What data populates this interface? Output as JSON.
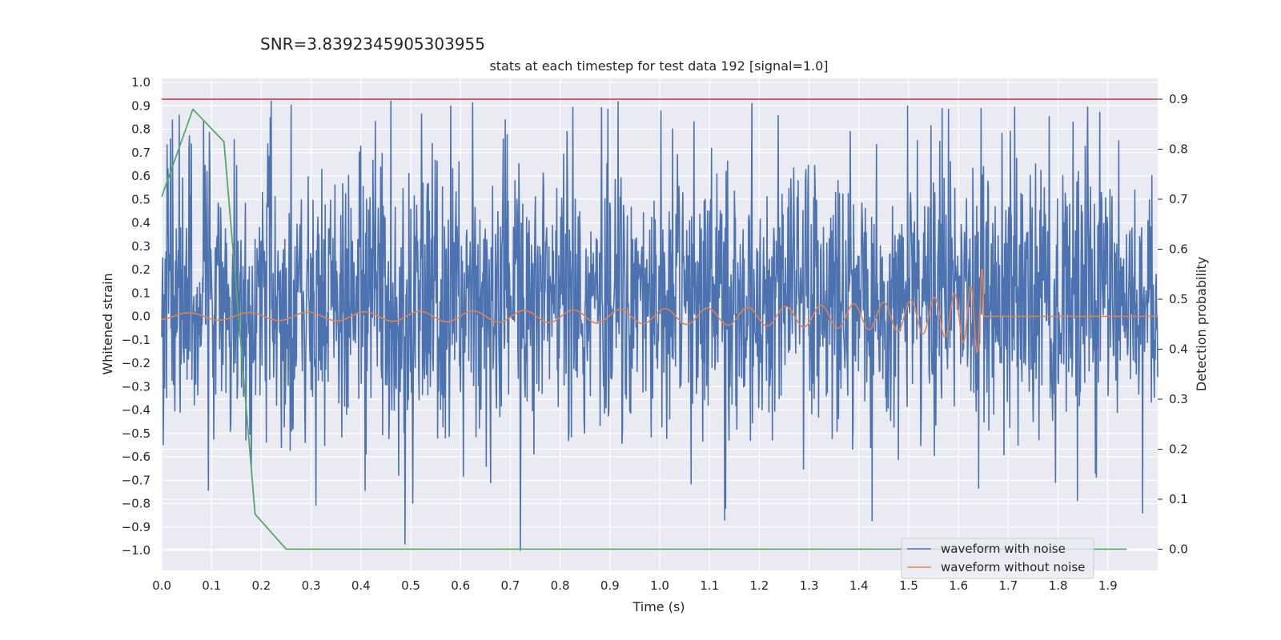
{
  "chart_data": {
    "type": "line",
    "suptitle": "SNR=3.8392345905303955",
    "title": "stats at each timestep for test data 192 [signal=1.0]",
    "xlabel": "Time (s)",
    "ylabel": "Whitened strain",
    "y2label": "Detection probability",
    "xlim": [
      0.0,
      2.0
    ],
    "ylim": [
      -1.09,
      1.04
    ],
    "y2lim": [
      -0.04,
      0.93
    ],
    "xticks": [
      "0.0",
      "0.1",
      "0.2",
      "0.3",
      "0.4",
      "0.5",
      "0.6",
      "0.7",
      "0.8",
      "0.9",
      "1.0",
      "1.1",
      "1.2",
      "1.3",
      "1.4",
      "1.5",
      "1.6",
      "1.7",
      "1.8",
      "1.9"
    ],
    "yticks": [
      "1.0",
      "0.9",
      "0.8",
      "0.7",
      "0.6",
      "0.5",
      "0.4",
      "0.3",
      "0.2",
      "0.1",
      "0.0",
      "−0.1",
      "−0.2",
      "−0.3",
      "−0.4",
      "−0.5",
      "−0.6",
      "−0.7",
      "−0.8",
      "−0.9",
      "−1.0"
    ],
    "y2ticks": [
      "0.9",
      "0.8",
      "0.7",
      "0.6",
      "0.5",
      "0.4",
      "0.3",
      "0.2",
      "0.1",
      "0.0"
    ],
    "grid": true,
    "legend": "lower-right",
    "series": [
      {
        "name": "waveform with noise",
        "axis": "left",
        "color": "#4c72b0",
        "kind": "noise",
        "x_range": [
          0.0,
          2.0
        ],
        "amplitude_range": [
          -1.0,
          0.92
        ],
        "spikes": [
          {
            "x": 0.035,
            "y": 0.86
          },
          {
            "x": 0.22,
            "y": 0.92
          },
          {
            "x": 0.46,
            "y": 0.92
          },
          {
            "x": 0.69,
            "y": 0.84
          },
          {
            "x": 0.72,
            "y": -1.0
          },
          {
            "x": 1.185,
            "y": 0.91
          },
          {
            "x": 1.83,
            "y": 0.83
          },
          {
            "x": 1.97,
            "y": -0.84
          },
          {
            "x": 1.13,
            "y": -0.87
          }
        ]
      },
      {
        "name": "waveform without noise",
        "axis": "left",
        "color": "#dd8452",
        "kind": "chirp",
        "x_range": [
          0.0,
          2.0
        ],
        "merger_time": 1.65,
        "start_amplitude": 0.015,
        "peak_amplitude": 0.23,
        "start_frequency_hz": 8,
        "end_frequency_hz": 70,
        "post_merger_value": 0.0
      },
      {
        "name": "",
        "axis": "right",
        "color": "#55a868",
        "x": [
          0.0,
          0.0625,
          0.125,
          0.1875,
          0.25,
          1.9375
        ],
        "y": [
          0.705,
          0.88,
          0.815,
          0.07,
          0.0,
          0.0
        ]
      },
      {
        "name": "",
        "axis": "right",
        "color": "#c44e52",
        "x": [
          0.0,
          2.0
        ],
        "y": [
          0.9,
          0.9
        ]
      }
    ]
  }
}
